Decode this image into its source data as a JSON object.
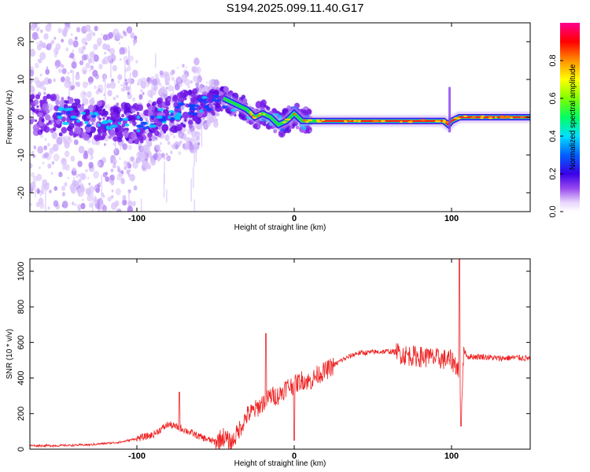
{
  "title": "S194.2025.099.11.40.G17",
  "chart_data": [
    {
      "type": "heatmap",
      "xlabel": "Height of straight line (km)",
      "ylabel": "Frequency (Hz)",
      "xlim": [
        -168,
        150
      ],
      "ylim": [
        -25,
        25
      ],
      "xticks": [
        "-100",
        "0",
        "100"
      ],
      "yticks": [
        "-20",
        "-10",
        "0",
        "10",
        "20"
      ],
      "colorbar": {
        "label": "Normalized spectral amplitude",
        "ticks": [
          "0.0",
          "0.2",
          "0.4",
          "0.6",
          "0.8"
        ],
        "range": [
          0,
          1
        ]
      },
      "ridge": {
        "x": [
          -160,
          -140,
          -120,
          -100,
          -90,
          -80,
          -70,
          -60,
          -50,
          -45,
          -40,
          -35,
          -30,
          -25,
          -20,
          -15,
          -10,
          -5,
          0,
          5,
          10,
          15,
          20,
          40,
          60,
          80,
          95,
          98,
          100,
          105,
          110,
          120,
          130,
          150
        ],
        "freq_hz": [
          1,
          0,
          -1,
          -2,
          -1,
          1,
          2,
          3,
          4,
          5,
          4,
          3,
          2,
          0,
          1,
          0,
          -2,
          -1,
          1,
          -1,
          -1,
          -1,
          -1,
          -1,
          -1,
          -1,
          -1,
          -2,
          -1,
          0,
          0,
          0,
          0,
          0
        ]
      }
    },
    {
      "type": "line",
      "xlabel": "Height of straight line (km)",
      "ylabel": "SNR (10 * v/v)",
      "xlim": [
        -168,
        150
      ],
      "ylim": [
        0,
        1070
      ],
      "xticks": [
        "-100",
        "0",
        "100"
      ],
      "yticks": [
        "0",
        "200",
        "400",
        "600",
        "800",
        "1000"
      ],
      "series": [
        {
          "color": "#ee2222",
          "x": [
            -168,
            -150,
            -130,
            -110,
            -100,
            -90,
            -80,
            -70,
            -60,
            -50,
            -45,
            -40,
            -35,
            -30,
            -25,
            -20,
            -15,
            -10,
            -5,
            0,
            5,
            10,
            15,
            20,
            25,
            30,
            40,
            50,
            60,
            65,
            70,
            80,
            90,
            100,
            104,
            106,
            108,
            110,
            120,
            130,
            140,
            150
          ],
          "y": [
            20,
            20,
            25,
            40,
            60,
            80,
            140,
            110,
            70,
            40,
            70,
            30,
            110,
            190,
            220,
            260,
            300,
            300,
            350,
            360,
            390,
            380,
            420,
            440,
            470,
            500,
            540,
            545,
            550,
            545,
            530,
            520,
            510,
            500,
            460,
            220,
            560,
            520,
            520,
            510,
            515,
            510
          ]
        }
      ],
      "annotations": [
        {
          "x": -73,
          "y": 320
        },
        {
          "x": -18,
          "y": 650
        },
        {
          "x": 85,
          "y": 560
        },
        {
          "x": 105,
          "y": 1070
        },
        {
          "x": 106,
          "y": 130
        },
        {
          "x": 0,
          "y": 50
        }
      ]
    }
  ]
}
